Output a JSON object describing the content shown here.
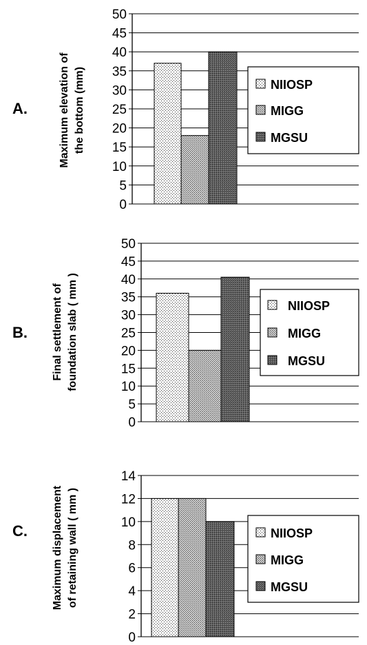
{
  "chart_data": [
    {
      "type": "bar",
      "panel_label": "A.",
      "ylabel_lines": [
        "Maximum elevation of",
        "the bottom (mm)"
      ],
      "ylim": [
        0,
        50
      ],
      "yticks": [
        0,
        5,
        10,
        15,
        20,
        25,
        30,
        35,
        40,
        45,
        50
      ],
      "grid": true,
      "legend": "right",
      "series": [
        {
          "name": "NIIOSP",
          "value": 37,
          "pattern": "dots-sparse"
        },
        {
          "name": "MIGG",
          "value": 18,
          "pattern": "dots-dense"
        },
        {
          "name": "MGSU",
          "value": 40,
          "pattern": "dark"
        }
      ]
    },
    {
      "type": "bar",
      "panel_label": "B.",
      "ylabel_lines": [
        "Final settlement of",
        "foundation slab ( mm )"
      ],
      "ylim": [
        0,
        50
      ],
      "yticks": [
        0,
        5,
        10,
        15,
        20,
        25,
        30,
        35,
        40,
        45,
        50
      ],
      "grid": true,
      "legend": "right",
      "series": [
        {
          "name": "NIIOSP",
          "value": 36,
          "pattern": "dots-sparse"
        },
        {
          "name": "MIGG",
          "value": 20,
          "pattern": "dots-dense"
        },
        {
          "name": "MGSU",
          "value": 40.5,
          "pattern": "dark"
        }
      ]
    },
    {
      "type": "bar",
      "panel_label": "C.",
      "ylabel_lines": [
        "Maximum displacement",
        "of retaining wall ( mm )"
      ],
      "ylim": [
        0,
        14
      ],
      "yticks": [
        0,
        2,
        4,
        6,
        8,
        10,
        12,
        14
      ],
      "grid": true,
      "legend": "right",
      "series": [
        {
          "name": "NIIOSP",
          "value": 12,
          "pattern": "dots-sparse"
        },
        {
          "name": "MIGG",
          "value": 12,
          "pattern": "dots-dense"
        },
        {
          "name": "MGSU",
          "value": 10,
          "pattern": "dark"
        }
      ]
    }
  ]
}
